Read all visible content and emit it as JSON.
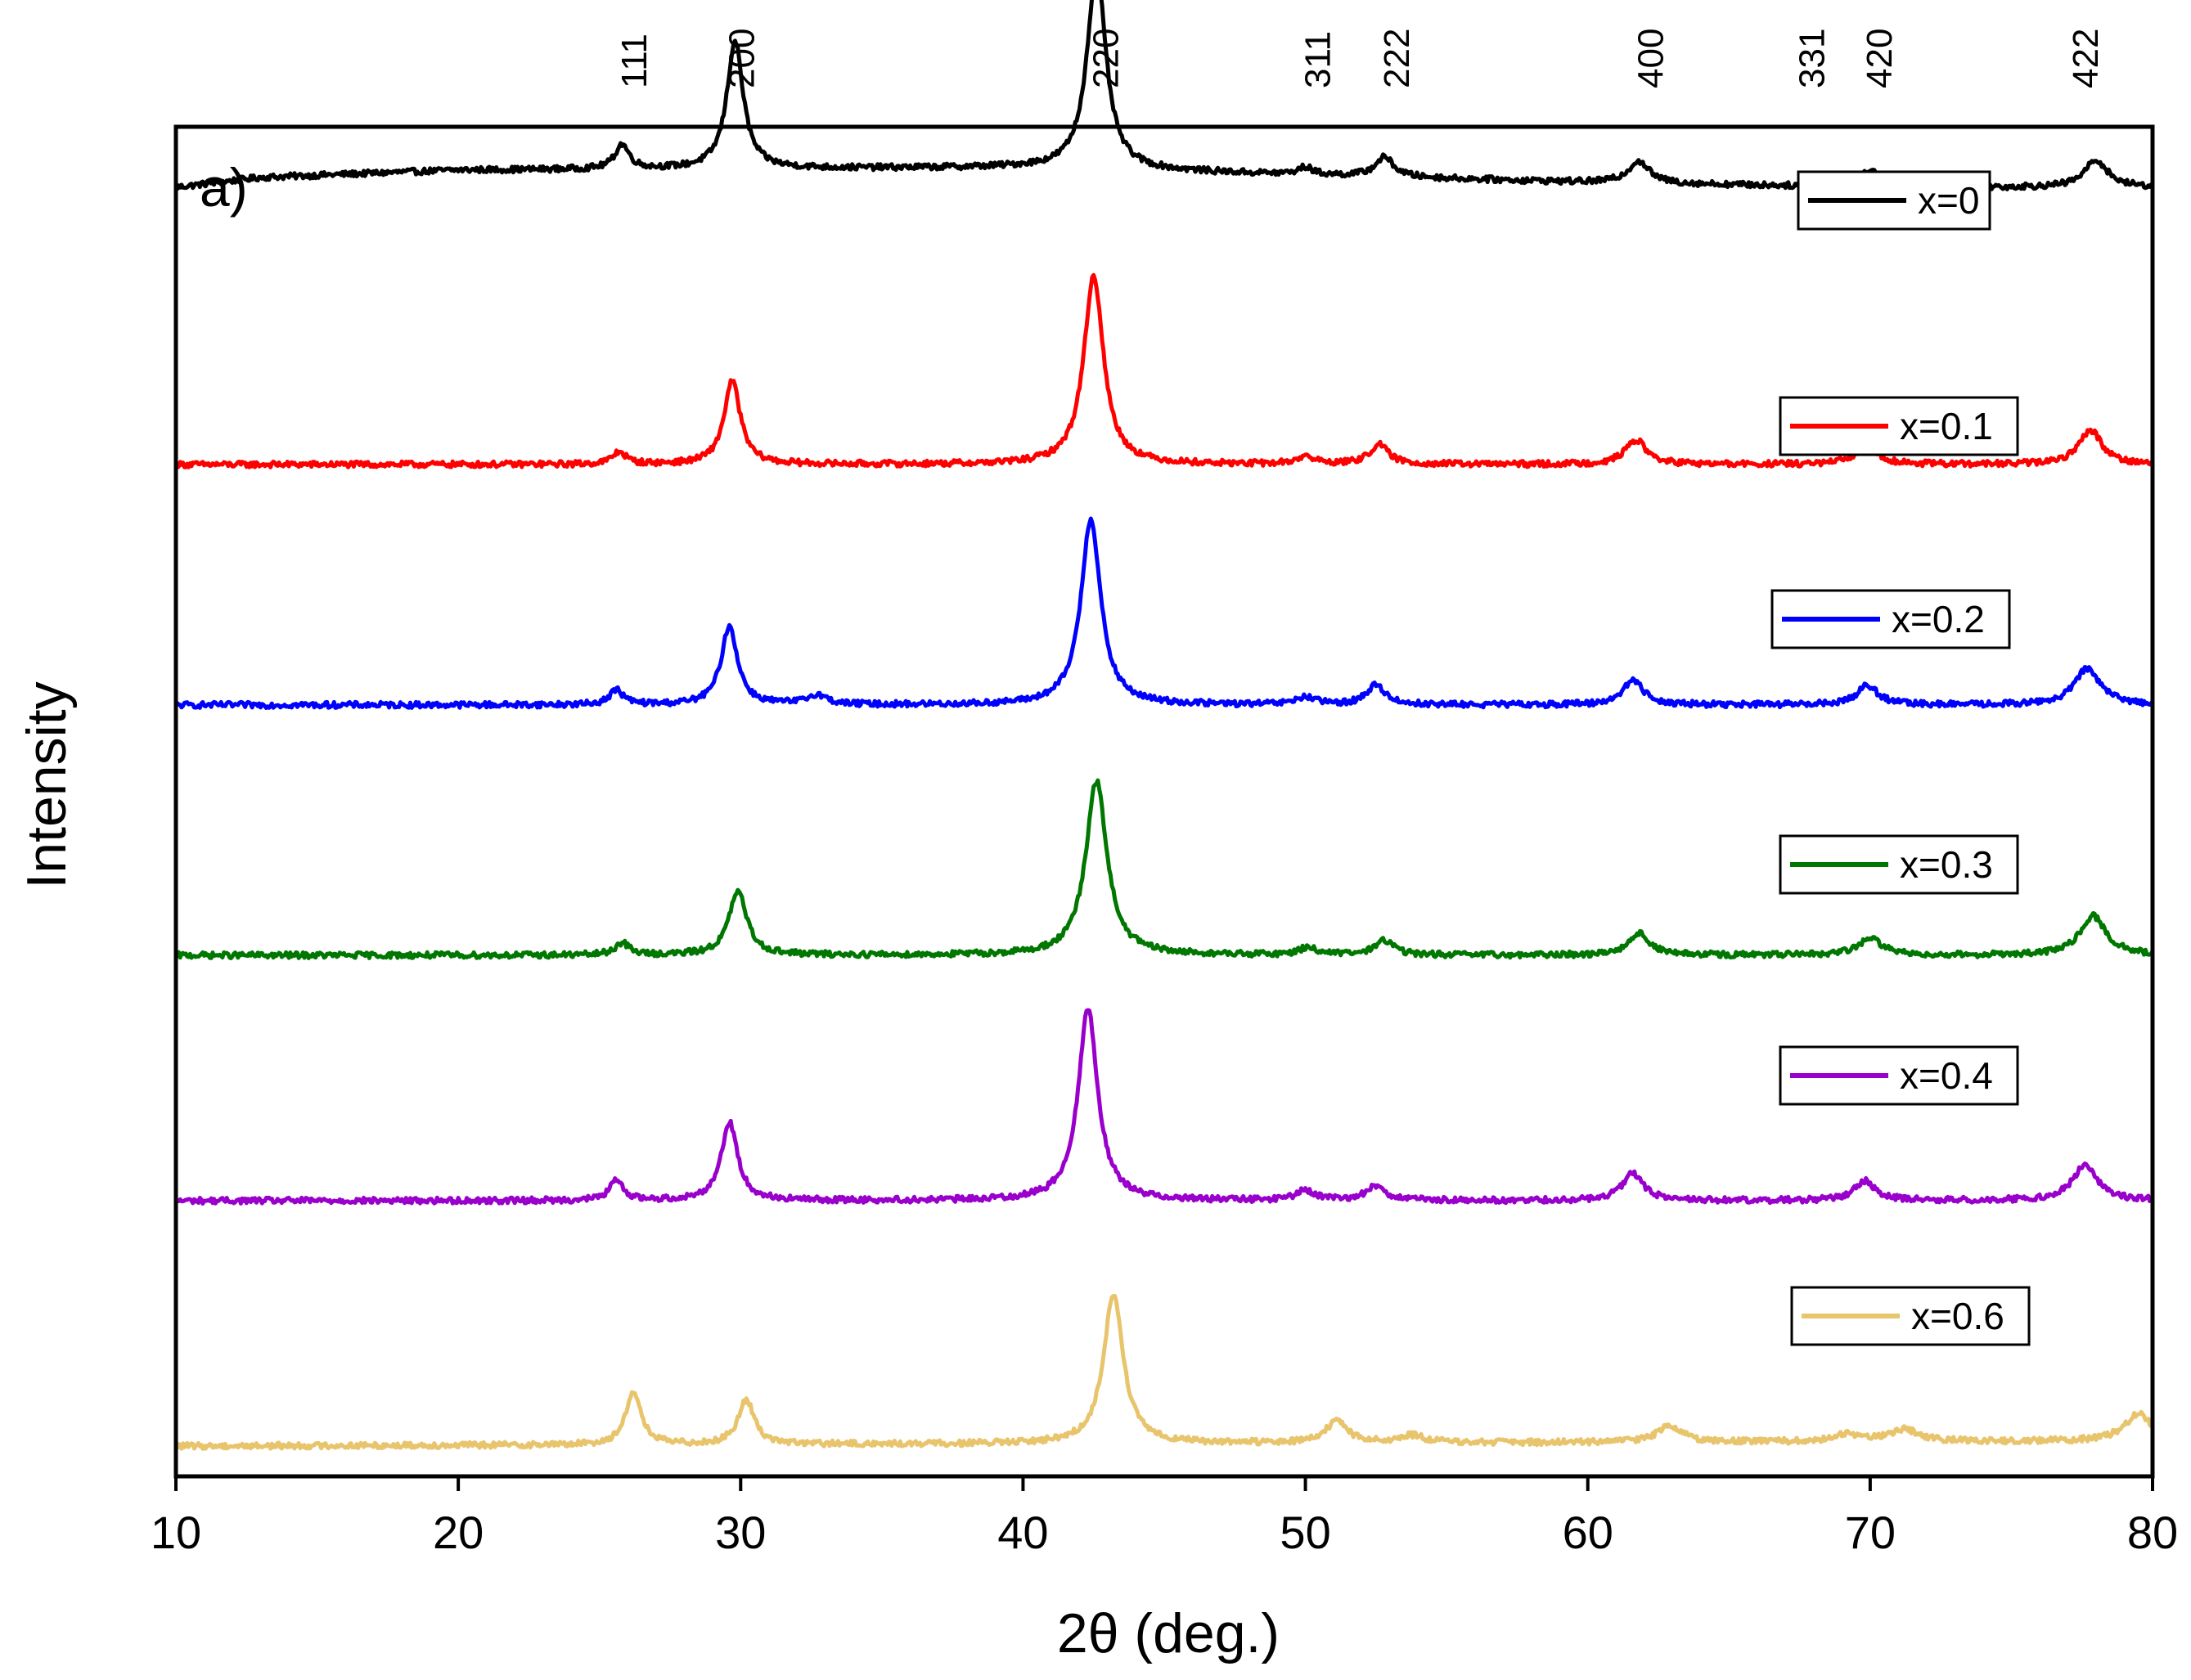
{
  "chart_data": {
    "type": "line",
    "panel_label": "a)",
    "xlabel": "2θ (deg.)",
    "ylabel": "Intensity",
    "xlim": [
      10,
      80
    ],
    "xticks": [
      10,
      20,
      30,
      40,
      50,
      60,
      70,
      80
    ],
    "y_ticks_shown": false,
    "grid": false,
    "legend_placement": "right, beside each curve",
    "stacking": "vertical offset, top to bottom",
    "miller_indices": [
      {
        "label": "111",
        "x": 26.2
      },
      {
        "label": "200",
        "x": 30.0
      },
      {
        "label": "220",
        "x": 42.9
      },
      {
        "label": "311",
        "x": 50.4
      },
      {
        "label": "222",
        "x": 53.2
      },
      {
        "label": "400",
        "x": 62.2
      },
      {
        "label": "331",
        "x": 67.9
      },
      {
        "label": "420",
        "x": 70.3
      },
      {
        "label": "422",
        "x": 77.6
      }
    ],
    "series": [
      {
        "name": "x=0",
        "color": "#000000",
        "offset": 5.0,
        "baseline": 0.13,
        "noise": 0.012,
        "baseline_points": [
          [
            10,
            0.0
          ],
          [
            13,
            0.04
          ],
          [
            20,
            0.07
          ],
          [
            40,
            0.08
          ],
          [
            50,
            0.05
          ],
          [
            60,
            0.02
          ],
          [
            70,
            0.0
          ],
          [
            80,
            0.0
          ]
        ],
        "peaks": [
          {
            "x": 25.8,
            "height": 0.1,
            "width": 0.3
          },
          {
            "x": 29.8,
            "height": 0.52,
            "width": 0.35
          },
          {
            "x": 42.6,
            "height": 0.82,
            "width": 0.4
          },
          {
            "x": 50.0,
            "height": 0.03,
            "width": 0.3
          },
          {
            "x": 52.8,
            "height": 0.08,
            "width": 0.4
          },
          {
            "x": 61.8,
            "height": 0.09,
            "width": 0.45
          },
          {
            "x": 70.0,
            "height": 0.07,
            "width": 0.45
          },
          {
            "x": 78.0,
            "height": 0.11,
            "width": 0.5
          }
        ]
      },
      {
        "name": "x=0.1",
        "color": "#ff0000",
        "offset": 4.0,
        "baseline": 0.0,
        "noise": 0.012,
        "baseline_points": [
          [
            10,
            0.0
          ],
          [
            80,
            0.0
          ]
        ],
        "peaks": [
          {
            "x": 25.7,
            "height": 0.05,
            "width": 0.3
          },
          {
            "x": 29.7,
            "height": 0.34,
            "width": 0.35
          },
          {
            "x": 42.5,
            "height": 0.77,
            "width": 0.42
          },
          {
            "x": 50.0,
            "height": 0.03,
            "width": 0.4
          },
          {
            "x": 52.6,
            "height": 0.08,
            "width": 0.4
          },
          {
            "x": 61.7,
            "height": 0.1,
            "width": 0.45
          },
          {
            "x": 69.9,
            "height": 0.08,
            "width": 0.45
          },
          {
            "x": 77.8,
            "height": 0.14,
            "width": 0.5
          }
        ]
      },
      {
        "name": "x=0.2",
        "color": "#0000ff",
        "offset": 3.0,
        "baseline": 0.02,
        "noise": 0.012,
        "baseline_points": [
          [
            10,
            0.0
          ],
          [
            80,
            0.0
          ]
        ],
        "peaks": [
          {
            "x": 25.6,
            "height": 0.06,
            "width": 0.3
          },
          {
            "x": 29.6,
            "height": 0.32,
            "width": 0.35
          },
          {
            "x": 32.7,
            "height": 0.04,
            "width": 0.4
          },
          {
            "x": 42.4,
            "height": 0.76,
            "width": 0.42
          },
          {
            "x": 50.0,
            "height": 0.03,
            "width": 0.4
          },
          {
            "x": 52.5,
            "height": 0.08,
            "width": 0.4
          },
          {
            "x": 61.6,
            "height": 0.1,
            "width": 0.45
          },
          {
            "x": 69.9,
            "height": 0.08,
            "width": 0.45
          },
          {
            "x": 77.7,
            "height": 0.15,
            "width": 0.55
          }
        ]
      },
      {
        "name": "x=0.3",
        "color": "#007700",
        "offset": 2.0,
        "baseline": 0.0,
        "noise": 0.012,
        "baseline_points": [
          [
            10,
            0.0
          ],
          [
            80,
            0.0
          ]
        ],
        "peaks": [
          {
            "x": 25.8,
            "height": 0.05,
            "width": 0.3
          },
          {
            "x": 29.9,
            "height": 0.26,
            "width": 0.38
          },
          {
            "x": 42.6,
            "height": 0.71,
            "width": 0.45
          },
          {
            "x": 50.1,
            "height": 0.03,
            "width": 0.4
          },
          {
            "x": 52.8,
            "height": 0.06,
            "width": 0.4
          },
          {
            "x": 61.8,
            "height": 0.09,
            "width": 0.45
          },
          {
            "x": 70.0,
            "height": 0.07,
            "width": 0.5
          },
          {
            "x": 77.9,
            "height": 0.16,
            "width": 0.55
          }
        ]
      },
      {
        "name": "x=0.4",
        "color": "#9900cc",
        "offset": 1.0,
        "baseline": 0.0,
        "noise": 0.012,
        "baseline_points": [
          [
            10,
            0.0
          ],
          [
            80,
            0.0
          ]
        ],
        "peaks": [
          {
            "x": 25.6,
            "height": 0.08,
            "width": 0.3
          },
          {
            "x": 29.6,
            "height": 0.32,
            "width": 0.35
          },
          {
            "x": 42.3,
            "height": 0.78,
            "width": 0.42
          },
          {
            "x": 50.0,
            "height": 0.04,
            "width": 0.4
          },
          {
            "x": 52.5,
            "height": 0.06,
            "width": 0.4
          },
          {
            "x": 61.6,
            "height": 0.11,
            "width": 0.45
          },
          {
            "x": 69.8,
            "height": 0.08,
            "width": 0.45
          },
          {
            "x": 77.6,
            "height": 0.14,
            "width": 0.55
          }
        ]
      },
      {
        "name": "x=0.6",
        "color": "#e8c46c",
        "offset": 0.0,
        "baseline": 0.0,
        "noise": 0.012,
        "baseline_points": [
          [
            10,
            0.0
          ],
          [
            80,
            0.02
          ]
        ],
        "peaks": [
          {
            "x": 26.2,
            "height": 0.22,
            "width": 0.32
          },
          {
            "x": 30.2,
            "height": 0.18,
            "width": 0.35
          },
          {
            "x": 43.2,
            "height": 0.61,
            "width": 0.42
          },
          {
            "x": 51.1,
            "height": 0.09,
            "width": 0.45
          },
          {
            "x": 53.8,
            "height": 0.03,
            "width": 0.5
          },
          {
            "x": 62.9,
            "height": 0.07,
            "width": 0.5
          },
          {
            "x": 69.2,
            "height": 0.03,
            "width": 0.6
          },
          {
            "x": 71.2,
            "height": 0.05,
            "width": 0.6
          },
          {
            "x": 79.5,
            "height": 0.11,
            "width": 0.6
          }
        ]
      }
    ]
  }
}
